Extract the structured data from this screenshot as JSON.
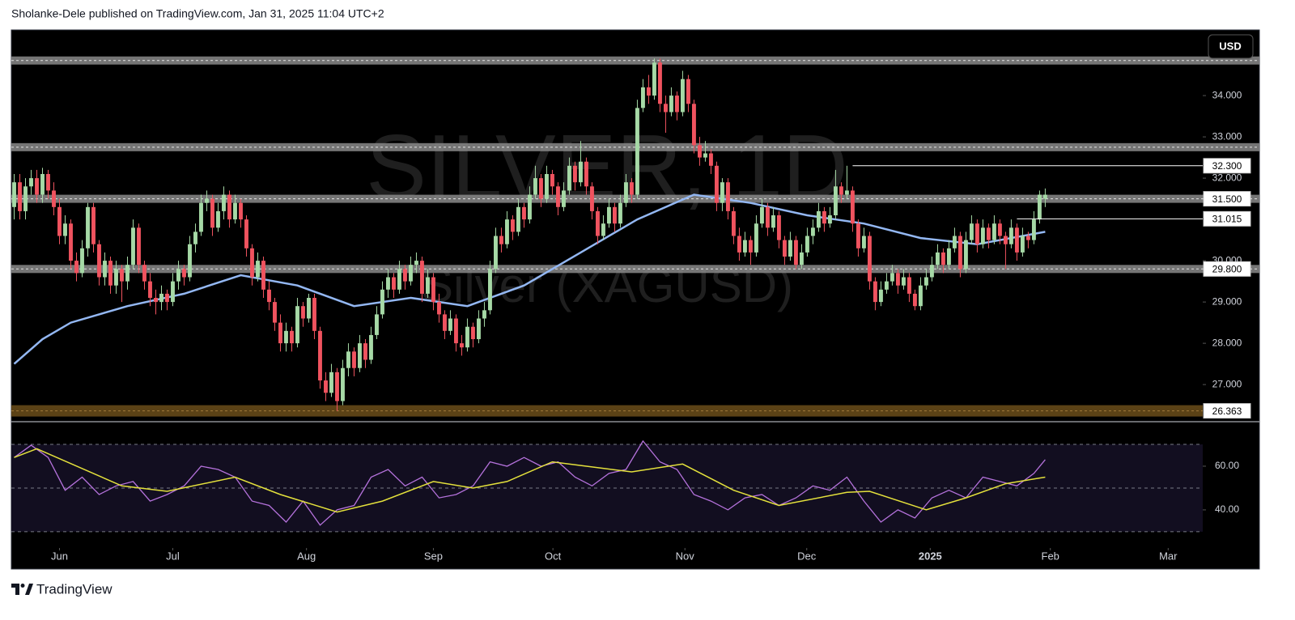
{
  "header": {
    "text": "Sholanke-Dele published on TradingView.com, Jan 31, 2025 11:04 UTC+2"
  },
  "footer": {
    "brand": "TradingView"
  },
  "chart_data": {
    "type": "candlestick",
    "title": "SILVER, 1D",
    "subtitle": "Silver (XAGUSD)",
    "currency": "USD",
    "up_color": "#a6d9a6",
    "down_color": "#f0535f",
    "xlim": [
      -0.5,
      209.8
    ],
    "xticks": [
      {
        "value": 8,
        "label": "Jun"
      },
      {
        "value": 28,
        "label": "Jul"
      },
      {
        "value": 51.6,
        "label": "Aug"
      },
      {
        "value": 74,
        "label": "Sep"
      },
      {
        "value": 95.1,
        "label": "Oct"
      },
      {
        "value": 118.4,
        "label": "Nov"
      },
      {
        "value": 139.9,
        "label": "Dec"
      },
      {
        "value": 161.7,
        "label": "2025"
      },
      {
        "value": 182.9,
        "label": "Feb"
      },
      {
        "value": 203.7,
        "label": "Mar"
      }
    ],
    "ylim": [
      26.12,
      35.59
    ],
    "yticks": [
      {
        "value": 27,
        "label": "27.000"
      },
      {
        "value": 28,
        "label": "28.000"
      },
      {
        "value": 29,
        "label": "29.000"
      },
      {
        "value": 30,
        "label": "30.000"
      },
      {
        "value": 32,
        "label": "32.000"
      },
      {
        "value": 33,
        "label": "33.000"
      },
      {
        "value": 34,
        "label": "34.000"
      }
    ],
    "candles": [
      [
        31.3,
        32.1,
        31.0,
        31.9
      ],
      [
        31.9,
        32.1,
        31.0,
        31.2
      ],
      [
        31.2,
        32.0,
        31.0,
        31.8
      ],
      [
        31.8,
        32.2,
        31.6,
        32.0
      ],
      [
        32.0,
        32.2,
        31.4,
        31.6
      ],
      [
        31.6,
        32.25,
        31.4,
        32.1
      ],
      [
        32.1,
        32.2,
        31.5,
        31.7
      ],
      [
        31.7,
        31.9,
        31.1,
        31.3
      ],
      [
        31.3,
        31.5,
        30.4,
        30.6
      ],
      [
        30.6,
        31.1,
        30.4,
        30.9
      ],
      [
        30.9,
        31.0,
        29.8,
        30.0
      ],
      [
        30.0,
        30.2,
        29.5,
        29.7
      ],
      [
        29.7,
        30.5,
        29.6,
        30.3
      ],
      [
        30.3,
        31.4,
        30.1,
        31.3
      ],
      [
        31.3,
        31.4,
        30.2,
        30.4
      ],
      [
        30.4,
        30.5,
        29.4,
        29.6
      ],
      [
        29.6,
        30.2,
        29.4,
        30.0
      ],
      [
        30.0,
        30.1,
        29.2,
        29.4
      ],
      [
        29.4,
        30.0,
        29.2,
        29.8
      ],
      [
        29.8,
        29.9,
        29.0,
        29.5
      ],
      [
        29.5,
        30.1,
        29.3,
        29.9
      ],
      [
        29.9,
        31.0,
        29.8,
        30.8
      ],
      [
        30.8,
        30.9,
        29.7,
        29.9
      ],
      [
        29.9,
        30.0,
        29.3,
        29.5
      ],
      [
        29.5,
        29.7,
        28.9,
        29.1
      ],
      [
        29.1,
        29.3,
        28.7,
        29.0
      ],
      [
        29.0,
        29.4,
        28.8,
        29.2
      ],
      [
        29.2,
        29.3,
        28.8,
        29.0
      ],
      [
        29.0,
        29.7,
        28.9,
        29.5
      ],
      [
        29.5,
        30.0,
        29.3,
        29.8
      ],
      [
        29.8,
        29.9,
        29.4,
        29.6
      ],
      [
        29.6,
        30.6,
        29.5,
        30.4
      ],
      [
        30.4,
        30.9,
        30.2,
        30.7
      ],
      [
        30.7,
        31.6,
        30.6,
        31.4
      ],
      [
        31.4,
        31.7,
        31.2,
        31.5
      ],
      [
        31.5,
        31.6,
        30.6,
        30.8
      ],
      [
        30.8,
        31.4,
        30.7,
        31.2
      ],
      [
        31.2,
        31.8,
        31.0,
        31.6
      ],
      [
        31.6,
        31.7,
        30.8,
        31.0
      ],
      [
        31.0,
        31.6,
        30.9,
        31.4
      ],
      [
        31.4,
        31.5,
        30.8,
        31.0
      ],
      [
        31.0,
        31.1,
        30.1,
        30.3
      ],
      [
        30.3,
        30.4,
        29.4,
        29.6
      ],
      [
        29.6,
        30.2,
        29.5,
        30.0
      ],
      [
        30.0,
        30.1,
        29.1,
        29.3
      ],
      [
        29.3,
        29.5,
        28.8,
        29.0
      ],
      [
        29.0,
        29.1,
        28.3,
        28.5
      ],
      [
        28.5,
        28.7,
        27.8,
        28.0
      ],
      [
        28.0,
        28.5,
        27.8,
        28.3
      ],
      [
        28.3,
        28.4,
        27.8,
        28.0
      ],
      [
        28.0,
        29.1,
        27.9,
        28.9
      ],
      [
        28.9,
        29.0,
        28.4,
        28.6
      ],
      [
        28.6,
        29.2,
        28.5,
        29.1
      ],
      [
        29.1,
        29.2,
        28.1,
        28.3
      ],
      [
        28.3,
        28.4,
        26.9,
        27.1
      ],
      [
        27.1,
        27.3,
        26.6,
        26.8
      ],
      [
        26.8,
        27.5,
        26.7,
        27.3
      ],
      [
        27.3,
        27.4,
        26.36,
        26.6
      ],
      [
        26.6,
        27.6,
        26.5,
        27.4
      ],
      [
        27.4,
        28.0,
        27.2,
        27.8
      ],
      [
        27.8,
        27.9,
        27.2,
        27.4
      ],
      [
        27.4,
        28.2,
        27.3,
        28.0
      ],
      [
        28.0,
        28.1,
        27.4,
        27.6
      ],
      [
        27.6,
        28.4,
        27.5,
        28.2
      ],
      [
        28.2,
        28.9,
        28.1,
        28.7
      ],
      [
        28.7,
        29.5,
        28.6,
        29.3
      ],
      [
        29.3,
        29.8,
        29.1,
        29.6
      ],
      [
        29.6,
        29.7,
        29.1,
        29.3
      ],
      [
        29.3,
        30.0,
        29.2,
        29.8
      ],
      [
        29.8,
        29.9,
        29.3,
        29.5
      ],
      [
        29.5,
        30.1,
        29.4,
        29.9
      ],
      [
        29.9,
        30.2,
        29.7,
        30.0
      ],
      [
        30.0,
        30.1,
        29.0,
        29.2
      ],
      [
        29.2,
        29.8,
        29.1,
        29.6
      ],
      [
        29.6,
        29.7,
        28.8,
        29.0
      ],
      [
        29.0,
        29.2,
        28.5,
        28.7
      ],
      [
        28.7,
        28.8,
        28.1,
        28.3
      ],
      [
        28.3,
        28.8,
        28.2,
        28.6
      ],
      [
        28.6,
        28.7,
        27.8,
        28.0
      ],
      [
        28.0,
        28.2,
        27.7,
        27.9
      ],
      [
        27.9,
        28.6,
        27.8,
        28.4
      ],
      [
        28.4,
        28.5,
        27.9,
        28.1
      ],
      [
        28.1,
        28.8,
        28.0,
        28.6
      ],
      [
        28.6,
        29.0,
        28.4,
        28.8
      ],
      [
        28.8,
        30.0,
        28.7,
        29.8
      ],
      [
        29.8,
        30.8,
        29.7,
        30.6
      ],
      [
        30.6,
        30.8,
        30.2,
        30.4
      ],
      [
        30.4,
        31.2,
        30.3,
        31.0
      ],
      [
        31.0,
        31.1,
        30.5,
        30.7
      ],
      [
        30.7,
        31.5,
        30.6,
        31.3
      ],
      [
        31.3,
        31.4,
        30.8,
        31.0
      ],
      [
        31.0,
        31.8,
        30.9,
        31.6
      ],
      [
        31.6,
        32.3,
        31.5,
        32.0
      ],
      [
        32.0,
        32.1,
        31.3,
        31.5
      ],
      [
        31.5,
        32.3,
        31.4,
        32.1
      ],
      [
        32.1,
        32.2,
        31.6,
        31.8
      ],
      [
        31.8,
        31.9,
        31.1,
        31.3
      ],
      [
        31.3,
        31.9,
        31.2,
        31.7
      ],
      [
        31.7,
        32.5,
        31.6,
        32.3
      ],
      [
        32.3,
        32.4,
        31.7,
        31.9
      ],
      [
        31.9,
        32.9,
        31.8,
        32.4
      ],
      [
        32.4,
        32.5,
        31.6,
        31.8
      ],
      [
        31.8,
        31.9,
        31.0,
        31.2
      ],
      [
        31.2,
        31.3,
        30.4,
        30.6
      ],
      [
        30.6,
        31.1,
        30.5,
        30.9
      ],
      [
        30.9,
        31.5,
        30.8,
        31.3
      ],
      [
        31.3,
        31.4,
        30.7,
        30.9
      ],
      [
        30.9,
        31.6,
        30.8,
        31.4
      ],
      [
        31.4,
        32.1,
        31.3,
        31.9
      ],
      [
        31.9,
        32.0,
        31.4,
        31.6
      ],
      [
        31.6,
        33.9,
        31.5,
        33.7
      ],
      [
        33.7,
        34.4,
        33.6,
        34.2
      ],
      [
        34.2,
        34.5,
        33.8,
        34.0
      ],
      [
        34.0,
        34.9,
        33.9,
        34.8
      ],
      [
        34.8,
        34.9,
        33.6,
        33.8
      ],
      [
        33.8,
        34.0,
        33.1,
        33.6
      ],
      [
        33.6,
        34.2,
        33.5,
        34.0
      ],
      [
        34.0,
        34.1,
        33.4,
        33.6
      ],
      [
        33.6,
        34.6,
        33.5,
        34.4
      ],
      [
        34.4,
        34.5,
        33.6,
        33.8
      ],
      [
        33.8,
        33.9,
        32.6,
        32.8
      ],
      [
        32.8,
        33.0,
        32.3,
        32.5
      ],
      [
        32.5,
        32.9,
        32.4,
        32.6
      ],
      [
        32.6,
        32.7,
        32.1,
        32.3
      ],
      [
        32.3,
        32.4,
        31.2,
        31.4
      ],
      [
        31.4,
        32.0,
        31.2,
        31.9
      ],
      [
        31.9,
        32.0,
        31.0,
        31.2
      ],
      [
        31.2,
        31.3,
        30.4,
        30.6
      ],
      [
        30.6,
        30.8,
        30.0,
        30.2
      ],
      [
        30.2,
        30.7,
        30.1,
        30.5
      ],
      [
        30.5,
        30.6,
        29.9,
        30.2
      ],
      [
        30.2,
        31.1,
        30.1,
        30.9
      ],
      [
        30.9,
        31.5,
        30.8,
        31.3
      ],
      [
        31.3,
        31.4,
        30.6,
        30.8
      ],
      [
        30.8,
        31.3,
        30.7,
        31.1
      ],
      [
        31.1,
        31.2,
        30.3,
        30.5
      ],
      [
        30.5,
        30.6,
        29.9,
        30.1
      ],
      [
        30.1,
        30.7,
        30.0,
        30.5
      ],
      [
        30.5,
        30.6,
        29.8,
        29.9
      ],
      [
        29.9,
        30.4,
        29.8,
        30.2
      ],
      [
        30.2,
        30.8,
        30.1,
        30.6
      ],
      [
        30.6,
        31.0,
        30.4,
        30.8
      ],
      [
        30.8,
        31.4,
        30.7,
        31.2
      ],
      [
        31.2,
        31.3,
        30.7,
        30.9
      ],
      [
        30.9,
        31.3,
        30.8,
        31.1
      ],
      [
        31.1,
        32.2,
        31.0,
        31.8
      ],
      [
        31.8,
        31.9,
        31.4,
        31.6
      ],
      [
        31.6,
        32.3,
        31.5,
        31.7
      ],
      [
        31.7,
        31.8,
        30.7,
        30.9
      ],
      [
        30.9,
        31.0,
        30.1,
        30.3
      ],
      [
        30.3,
        30.8,
        30.2,
        30.6
      ],
      [
        30.6,
        30.7,
        29.3,
        29.5
      ],
      [
        29.5,
        29.6,
        28.8,
        29.0
      ],
      [
        29.0,
        29.5,
        28.9,
        29.3
      ],
      [
        29.3,
        29.7,
        29.2,
        29.5
      ],
      [
        29.5,
        29.9,
        29.4,
        29.7
      ],
      [
        29.7,
        29.8,
        29.2,
        29.4
      ],
      [
        29.4,
        29.8,
        29.3,
        29.6
      ],
      [
        29.6,
        29.7,
        29.0,
        29.2
      ],
      [
        29.2,
        29.3,
        28.8,
        28.9
      ],
      [
        28.9,
        29.6,
        28.8,
        29.4
      ],
      [
        29.4,
        29.8,
        29.3,
        29.6
      ],
      [
        29.6,
        30.1,
        29.5,
        29.9
      ],
      [
        29.9,
        30.4,
        29.8,
        30.2
      ],
      [
        30.2,
        30.3,
        29.7,
        29.9
      ],
      [
        29.9,
        30.5,
        29.8,
        30.3
      ],
      [
        30.3,
        30.8,
        30.2,
        30.6
      ],
      [
        30.6,
        30.7,
        29.6,
        29.8
      ],
      [
        29.8,
        30.7,
        29.7,
        30.5
      ],
      [
        30.5,
        31.1,
        30.4,
        30.9
      ],
      [
        30.9,
        31.0,
        30.2,
        30.4
      ],
      [
        30.4,
        31.0,
        30.3,
        30.8
      ],
      [
        30.8,
        30.9,
        30.3,
        30.5
      ],
      [
        30.5,
        31.1,
        30.4,
        30.9
      ],
      [
        30.9,
        31.0,
        30.4,
        30.6
      ],
      [
        30.6,
        30.7,
        29.8,
        30.4
      ],
      [
        30.4,
        31.0,
        30.3,
        30.8
      ],
      [
        30.8,
        30.9,
        30.0,
        30.2
      ],
      [
        30.2,
        30.8,
        30.1,
        30.6
      ],
      [
        30.6,
        30.7,
        30.3,
        30.5
      ],
      [
        30.5,
        31.2,
        30.4,
        31.0
      ],
      [
        31.0,
        31.7,
        30.9,
        31.6
      ],
      [
        31.5,
        31.75,
        31.3,
        31.6
      ]
    ],
    "ma": {
      "color": "#93b7f2",
      "x": [
        0,
        5,
        10,
        20,
        30,
        40,
        50,
        60,
        70,
        80,
        90,
        100,
        110,
        120,
        130,
        140,
        150,
        160,
        170,
        182
      ],
      "values": [
        27.5,
        28.1,
        28.5,
        28.9,
        29.2,
        29.65,
        29.4,
        28.9,
        29.1,
        28.9,
        29.4,
        30.2,
        31.0,
        31.6,
        31.4,
        31.1,
        30.9,
        30.55,
        30.4,
        30.7
      ]
    },
    "level_color": "#8a8a8a",
    "levels": [
      {
        "value": 34.85
      },
      {
        "value": 32.75
      },
      {
        "value": 31.5,
        "label": "31.500"
      },
      {
        "value": 29.8,
        "label": "29.800"
      }
    ],
    "zone": {
      "value": 26.363,
      "label": "26.363",
      "color": "#5b4216"
    },
    "rays": [
      {
        "x": 148,
        "value": 32.3,
        "label": "32.300"
      },
      {
        "x": 177,
        "value": 31.015,
        "label": "31.015"
      }
    ],
    "rsi": {
      "color": "#b572dc",
      "band_color": "#120e20",
      "ylim": [
        23.3,
        80
      ],
      "yticks": [
        {
          "value": 40,
          "label": "40.00"
        },
        {
          "value": 60,
          "label": "60.00"
        }
      ],
      "bands": [
        70,
        50,
        30
      ],
      "x": [
        0,
        3,
        6,
        9,
        12,
        15,
        18,
        21,
        24,
        27,
        30,
        33,
        36,
        39,
        42,
        45,
        48,
        51,
        54,
        57,
        60,
        63,
        66,
        69,
        72,
        75,
        78,
        81,
        84,
        87,
        90,
        93,
        96,
        99,
        102,
        105,
        108,
        111,
        114,
        117,
        120,
        123,
        126,
        129,
        132,
        135,
        138,
        141,
        144,
        147,
        150,
        153,
        156,
        159,
        162,
        165,
        168,
        171,
        174,
        177,
        180,
        182
      ],
      "values": [
        64,
        69.6,
        64,
        49,
        55,
        47,
        51,
        53,
        44,
        47,
        51,
        60,
        58.5,
        55,
        44,
        42,
        34.4,
        44,
        33,
        40,
        42,
        55,
        58.5,
        51,
        55,
        45.5,
        47,
        51,
        62,
        60,
        64,
        60,
        62,
        55,
        51,
        56.7,
        58.5,
        71.5,
        62,
        58.5,
        47,
        44,
        40,
        45.5,
        47,
        42,
        45.5,
        51,
        49,
        55,
        44,
        34.4,
        40,
        36.3,
        45.5,
        49,
        45.5,
        55,
        53,
        51,
        56.7,
        63
      ],
      "ma": {
        "color": "#e4e13c",
        "x": [
          0,
          4,
          19,
          27,
          39,
          47,
          57,
          65,
          74,
          81,
          87,
          95,
          101,
          109,
          118,
          127,
          135,
          147,
          151,
          161,
          168,
          175,
          182
        ],
        "values": [
          64,
          68,
          51,
          48.5,
          55,
          47,
          39,
          44,
          53,
          50,
          53,
          62,
          60,
          57.4,
          61,
          49,
          42,
          48,
          48.5,
          40,
          45.5,
          52,
          55
        ]
      }
    }
  }
}
